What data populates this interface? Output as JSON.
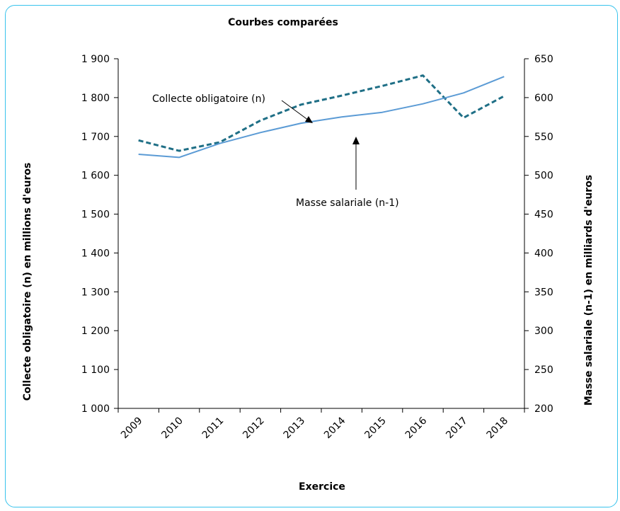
{
  "chart_data": {
    "type": "line",
    "title": "Courbes comparées",
    "xlabel": "Exercice",
    "ylabel_left": "Collecte obligatoire (n) en millions d'euros",
    "ylabel_right": "Masse salariale (n-1) en milliards d'euros",
    "categories": [
      "2009",
      "2010",
      "2011",
      "2012",
      "2013",
      "2014",
      "2015",
      "2016",
      "2017",
      "2018"
    ],
    "y_left": {
      "min": 1000,
      "max": 1900,
      "ticks": [
        1000,
        1100,
        1200,
        1300,
        1400,
        1500,
        1600,
        1700,
        1800,
        1900
      ],
      "tick_labels": [
        "1 000",
        "1 100",
        "1 200",
        "1 300",
        "1 400",
        "1 500",
        "1 600",
        "1 700",
        "1 800",
        "1 900"
      ]
    },
    "y_right": {
      "min": 200,
      "max": 650,
      "ticks": [
        200,
        250,
        300,
        350,
        400,
        450,
        500,
        550,
        600,
        650
      ],
      "tick_labels": [
        "200",
        "250",
        "300",
        "350",
        "400",
        "450",
        "500",
        "550",
        "600",
        "650"
      ]
    },
    "series": [
      {
        "name": "Collecte obligatoire (n)",
        "axis": "left",
        "style": "dashed",
        "color": "#1f6f86",
        "values": [
          1690,
          1663,
          1685,
          1741,
          1782,
          1805,
          1830,
          1857,
          1748,
          1804
        ]
      },
      {
        "name": "Masse salariale (n-1)",
        "axis": "right",
        "style": "solid",
        "color": "#5b9bd5",
        "values": [
          527,
          523,
          541,
          555,
          567,
          575,
          581,
          592,
          606,
          627
        ]
      }
    ],
    "annotations": [
      {
        "text": "Collecte obligatoire (n)",
        "series": "Collecte obligatoire (n)"
      },
      {
        "text": "Masse salariale (n-1)",
        "series": "Masse salariale (n-1)"
      }
    ],
    "grid": false,
    "legend": "none"
  }
}
